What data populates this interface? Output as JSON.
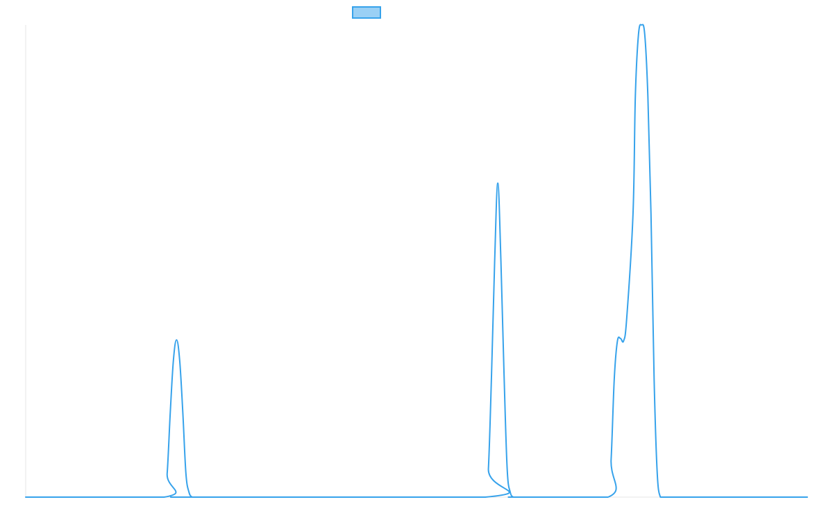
{
  "colors": {
    "series_stroke": "#36a2eb",
    "series_fill": "#9ad0f5",
    "axis": "#e5e5e5",
    "background": "#ffffff"
  },
  "chart_data": {
    "type": "line",
    "title": "",
    "xlabel": "",
    "ylabel": "",
    "grid": false,
    "legend_position": "top",
    "xlim": [
      0,
      1
    ],
    "ylim": [
      0,
      1
    ],
    "series": [
      {
        "legend_label": "",
        "x": [
          0,
          0.177,
          0.181,
          0.185,
          0.189,
          0.193,
          0.197,
          0.201,
          0.205,
          0.209,
          0.213,
          0.216,
          0.588,
          0.592,
          0.596,
          0.6,
          0.604,
          0.608,
          0.612,
          0.616,
          0.62,
          0.624,
          0.628,
          0.745,
          0.749,
          0.753,
          0.757,
          0.761,
          0.765,
          0.769,
          0.777,
          0.78,
          0.784,
          0.788,
          0.792,
          0.796,
          0.8,
          0.804,
          0.808,
          0.812,
          0.816,
          0.82,
          0.824,
          0.828,
          0.832,
          0.836,
          0.84,
          0.844,
          0.848,
          0.852,
          0.855,
          1
        ],
        "y": [
          0,
          0,
          0.05,
          0.18,
          0.29,
          0.333,
          0.29,
          0.18,
          0.05,
          0.01,
          0,
          0,
          0,
          0.06,
          0.26,
          0.5,
          0.665,
          0.5,
          0.26,
          0.06,
          0.01,
          0,
          0,
          0,
          0.08,
          0.25,
          0.33,
          0.336,
          0.331,
          0.38,
          0.6,
          0.85,
          0.98,
          1.0,
          0.98,
          0.85,
          0.6,
          0.25,
          0.05,
          0,
          0,
          0,
          0,
          0,
          0,
          0,
          0,
          0,
          0,
          0,
          0,
          0
        ]
      }
    ]
  }
}
